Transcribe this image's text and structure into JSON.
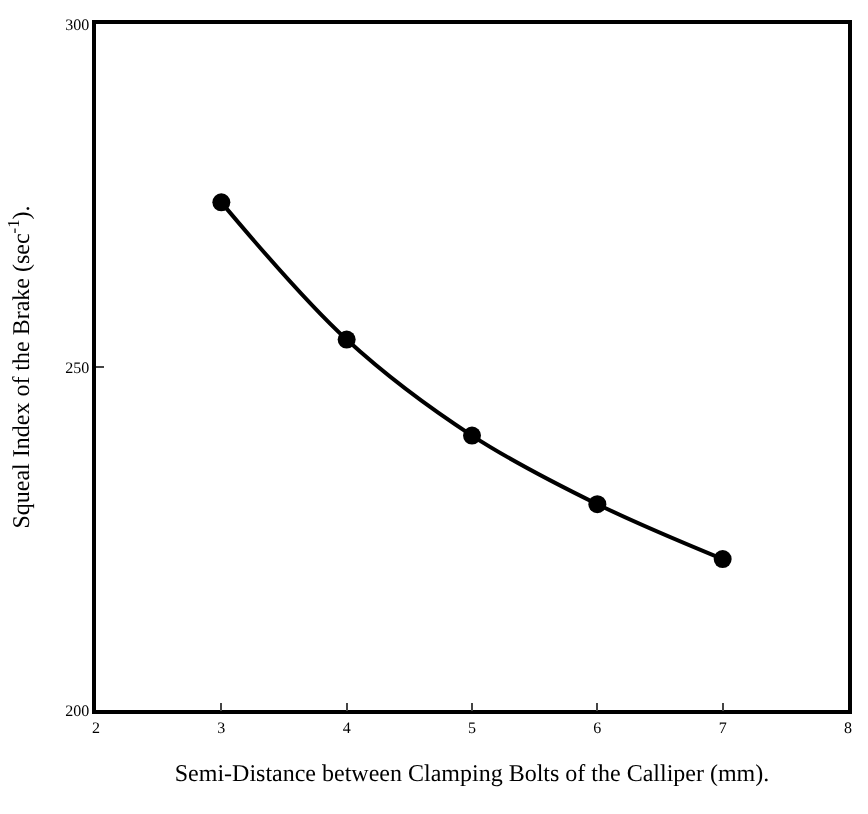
{
  "chart_data": {
    "type": "line",
    "xlabel": "Semi-Distance between Clamping Bolts of the Calliper (mm).",
    "ylabel": "Squeal Index of the Brake (sec$^{-1}$).",
    "x": [
      3,
      4,
      5,
      6,
      7
    ],
    "series": [
      {
        "color": "#000000",
        "values": [
          274,
          254,
          240,
          230,
          222
        ]
      }
    ],
    "xlim": [
      2,
      8
    ],
    "xticks": [
      2,
      3,
      4,
      5,
      6,
      7,
      8
    ],
    "ylim": [
      200,
      300
    ],
    "yticks": [
      200,
      250,
      300
    ],
    "legend": false,
    "marker": "circle",
    "line_style": "solid"
  }
}
